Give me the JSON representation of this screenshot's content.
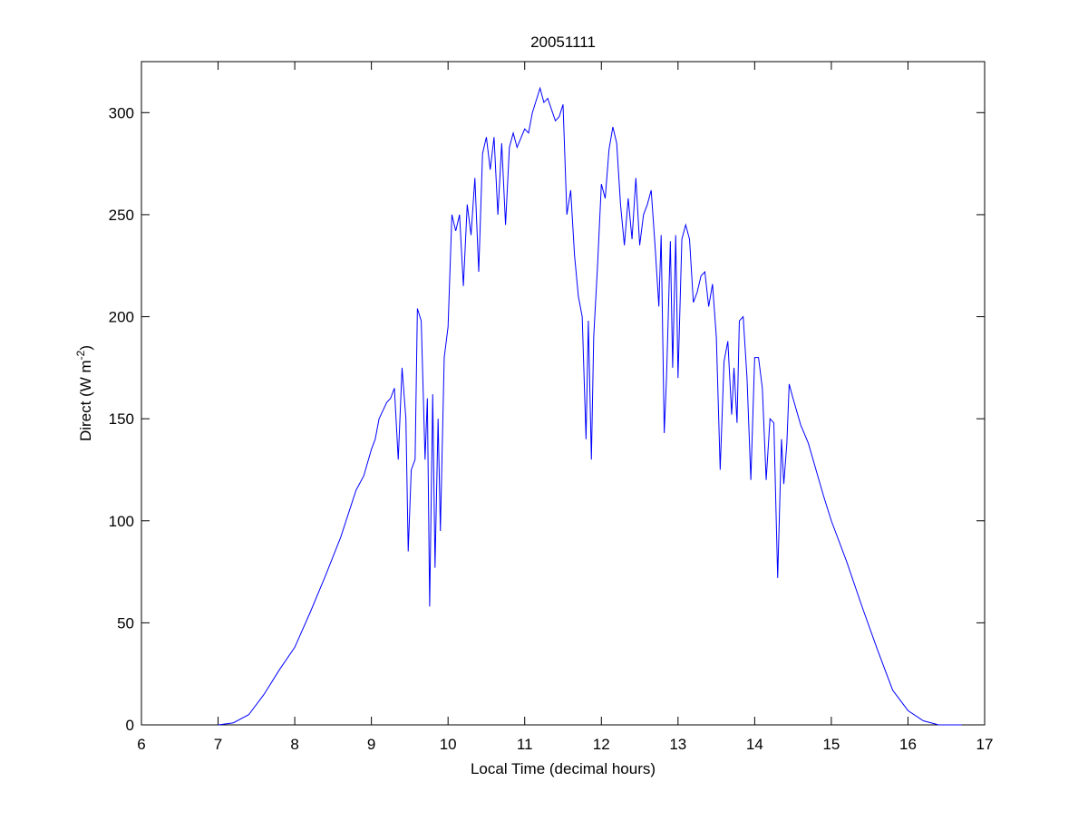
{
  "chart_data": {
    "type": "line",
    "title": "20051111",
    "x_label": "Local Time (decimal hours)",
    "y_label": {
      "text": "Direct (W m",
      "superscript": "-2",
      "suffix": ")"
    },
    "x": [
      7.0,
      7.2,
      7.4,
      7.6,
      7.8,
      8.0,
      8.2,
      8.4,
      8.6,
      8.8,
      8.9,
      9.0,
      9.05,
      9.1,
      9.2,
      9.25,
      9.3,
      9.35,
      9.4,
      9.45,
      9.48,
      9.52,
      9.57,
      9.6,
      9.65,
      9.7,
      9.73,
      9.76,
      9.8,
      9.83,
      9.87,
      9.9,
      9.95,
      10.0,
      10.05,
      10.1,
      10.15,
      10.2,
      10.25,
      10.3,
      10.35,
      10.4,
      10.45,
      10.5,
      10.55,
      10.6,
      10.65,
      10.7,
      10.75,
      10.8,
      10.85,
      10.9,
      11.0,
      11.05,
      11.1,
      11.2,
      11.25,
      11.3,
      11.4,
      11.45,
      11.5,
      11.55,
      11.6,
      11.65,
      11.7,
      11.75,
      11.8,
      11.83,
      11.87,
      11.9,
      11.95,
      12.0,
      12.05,
      12.1,
      12.15,
      12.2,
      12.25,
      12.3,
      12.35,
      12.4,
      12.45,
      12.5,
      12.55,
      12.6,
      12.65,
      12.7,
      12.75,
      12.78,
      12.82,
      12.85,
      12.9,
      12.93,
      12.97,
      13.0,
      13.05,
      13.1,
      13.15,
      13.2,
      13.25,
      13.3,
      13.35,
      13.4,
      13.45,
      13.5,
      13.55,
      13.6,
      13.65,
      13.7,
      13.73,
      13.77,
      13.8,
      13.85,
      13.9,
      13.95,
      14.0,
      14.05,
      14.1,
      14.15,
      14.2,
      14.25,
      14.3,
      14.35,
      14.38,
      14.42,
      14.45,
      14.5,
      14.6,
      14.7,
      14.8,
      14.9,
      15.0,
      15.2,
      15.4,
      15.6,
      15.8,
      16.0,
      16.2,
      16.4,
      16.7
    ],
    "series": [
      {
        "color": "#0000ff",
        "values": [
          0,
          1,
          5,
          15,
          27,
          38,
          55,
          73,
          92,
          115,
          122,
          135,
          140,
          150,
          158,
          160,
          165,
          130,
          175,
          150,
          85,
          125,
          130,
          204,
          198,
          130,
          160,
          58,
          162,
          77,
          150,
          95,
          180,
          195,
          250,
          242,
          250,
          215,
          255,
          240,
          268,
          222,
          280,
          288,
          272,
          288,
          250,
          285,
          245,
          283,
          290,
          283,
          292,
          290,
          300,
          312,
          305,
          307,
          296,
          298,
          304,
          250,
          262,
          230,
          210,
          200,
          140,
          198,
          130,
          190,
          225,
          265,
          258,
          282,
          293,
          285,
          255,
          235,
          258,
          238,
          268,
          235,
          250,
          255,
          262,
          235,
          205,
          240,
          143,
          170,
          237,
          175,
          240,
          170,
          238,
          245,
          238,
          207,
          212,
          220,
          222,
          205,
          216,
          190,
          125,
          178,
          188,
          152,
          175,
          148,
          198,
          200,
          170,
          120,
          180,
          180,
          165,
          120,
          150,
          148,
          72,
          140,
          118,
          138,
          167,
          160,
          147,
          138,
          125,
          112,
          100,
          80,
          58,
          37,
          17,
          7,
          2,
          0,
          0
        ]
      }
    ],
    "xlim": [
      6,
      17
    ],
    "ylim": [
      0,
      325
    ],
    "xticks": [
      6,
      7,
      8,
      9,
      10,
      11,
      12,
      13,
      14,
      15,
      16,
      17
    ],
    "yticks": [
      0,
      50,
      100,
      150,
      200,
      250,
      300
    ]
  }
}
